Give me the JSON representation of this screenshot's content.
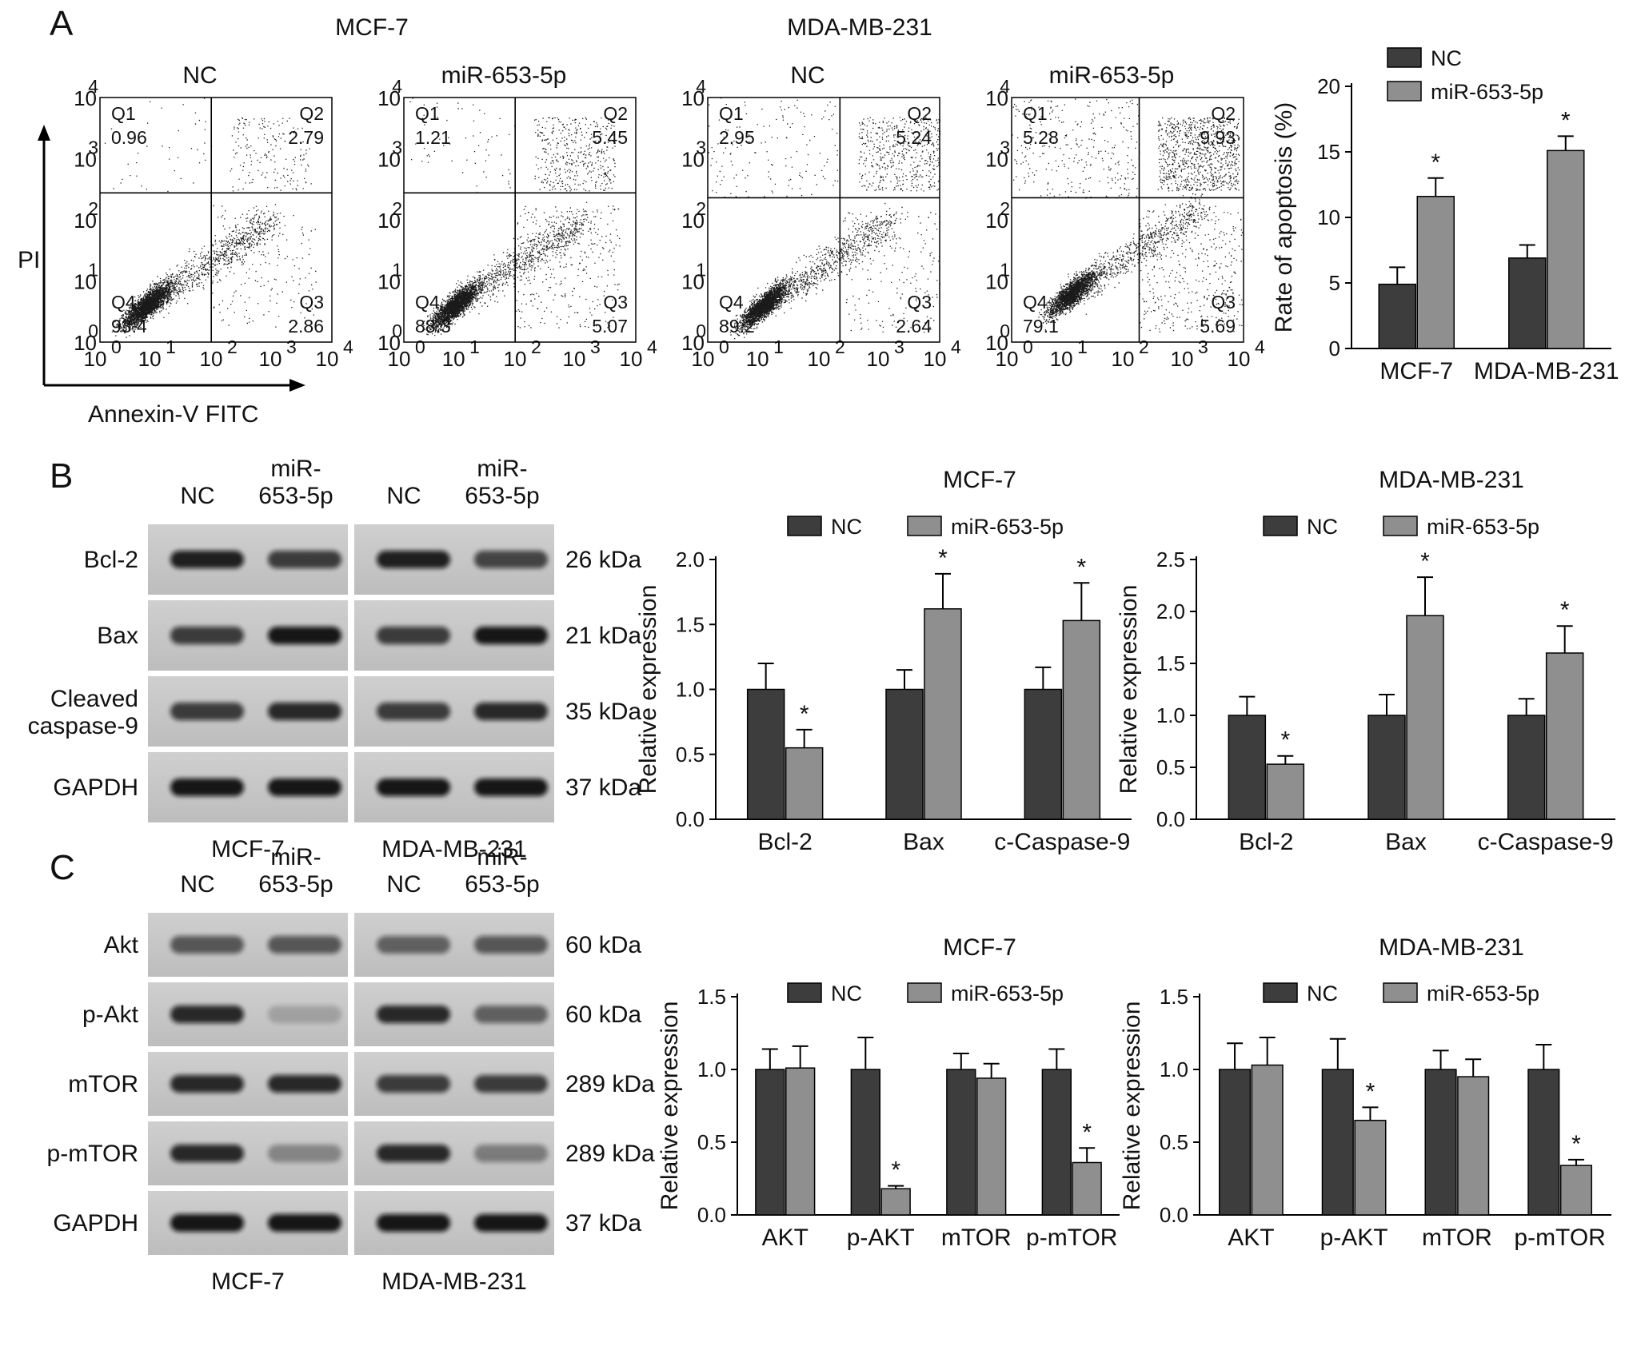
{
  "panel_labels": [
    "A",
    "B",
    "C"
  ],
  "flow": {
    "cell_titles": [
      "MCF-7",
      "MDA-MB-231"
    ],
    "xlabel": "Annexin-V FITC",
    "ylabel": "PI",
    "x_ticks": [
      "10",
      "10",
      "10",
      "10",
      "10"
    ],
    "x_exp": [
      "0",
      "1",
      "2",
      "3",
      "4"
    ],
    "y_ticks": [
      "10",
      "10",
      "10",
      "10",
      "10"
    ],
    "y_exp": [
      "0",
      "1",
      "2",
      "3",
      "4"
    ],
    "plots": [
      {
        "title": "NC",
        "Q1": "0.96",
        "Q2": "2.79",
        "Q3": "2.86",
        "Q4": "93.4"
      },
      {
        "title": "miR-653-5p",
        "Q1": "1.21",
        "Q2": "5.45",
        "Q3": "5.07",
        "Q4": "88.3"
      },
      {
        "title": "NC",
        "Q1": "2.95",
        "Q2": "5.24",
        "Q3": "2.64",
        "Q4": "89.2"
      },
      {
        "title": "miR-653-5p",
        "Q1": "5.28",
        "Q2": "9.93",
        "Q3": "5.69",
        "Q4": "79.1"
      }
    ],
    "quadrant_names": [
      "Q1",
      "Q2",
      "Q3",
      "Q4"
    ]
  },
  "blots": {
    "B": {
      "header_nc": "NC",
      "header_mir_1": "miR-",
      "header_mir_2": "653-5p",
      "rows": [
        {
          "label": "Bcl-2",
          "kda": "26 kDa"
        },
        {
          "label": "Bax",
          "kda": "21 kDa"
        },
        {
          "label": "Cleaved caspase-9",
          "label_1": "Cleaved",
          "label_2": "caspase-9",
          "kda": "35 kDa"
        },
        {
          "label": "GAPDH",
          "kda": "37 kDa"
        }
      ],
      "cell_lines": [
        "MCF-7",
        "MDA-MB-231"
      ]
    },
    "C": {
      "header_nc": "NC",
      "header_mir_1": "miR-",
      "header_mir_2": "653-5p",
      "rows": [
        {
          "label": "Akt",
          "kda": "60 kDa"
        },
        {
          "label": "p-Akt",
          "kda": "60 kDa"
        },
        {
          "label": "mTOR",
          "kda": "289 kDa"
        },
        {
          "label": "p-mTOR",
          "kda": "289 kDa"
        },
        {
          "label": "GAPDH",
          "kda": "37 kDa"
        }
      ],
      "cell_lines": [
        "MCF-7",
        "MDA-MB-231"
      ]
    }
  },
  "colors": {
    "nc": "#3d3d3d",
    "mir": "#8f8f8f"
  },
  "chart_data": [
    {
      "type": "bar",
      "title": "",
      "categories": [
        "MCF-7",
        "MDA-MB-231"
      ],
      "series": [
        {
          "name": "NC",
          "values": [
            4.9,
            6.9
          ],
          "errors": [
            1.3,
            1.0
          ]
        },
        {
          "name": "miR-653-5p",
          "values": [
            11.6,
            15.1
          ],
          "errors": [
            1.4,
            1.1
          ]
        }
      ],
      "significant": [
        [
          false,
          false
        ],
        [
          true,
          true
        ]
      ],
      "ylabel": "Rate of apoptosis (%)",
      "ylim": [
        0,
        20
      ],
      "yticks": [
        0,
        5,
        10,
        15,
        20
      ],
      "legend": "top-left",
      "grid": false
    },
    {
      "type": "bar",
      "title": "MCF-7",
      "categories": [
        "Bcl-2",
        "Bax",
        "c-Caspase-9"
      ],
      "series": [
        {
          "name": "NC",
          "values": [
            1.0,
            1.0,
            1.0
          ],
          "errors": [
            0.2,
            0.15,
            0.17
          ]
        },
        {
          "name": "miR-653-5p",
          "values": [
            0.55,
            1.62,
            1.53
          ],
          "errors": [
            0.14,
            0.27,
            0.29
          ]
        }
      ],
      "significant": [
        [
          false,
          false,
          false
        ],
        [
          true,
          true,
          true
        ]
      ],
      "ylabel": "Relative expression",
      "ylim": [
        0,
        2.0
      ],
      "yticks": [
        "0.0",
        "0.5",
        "1.0",
        "1.5",
        "2.0"
      ],
      "legend": "top",
      "grid": false
    },
    {
      "type": "bar",
      "title": "MDA-MB-231",
      "categories": [
        "Bcl-2",
        "Bax",
        "c-Caspase-9"
      ],
      "series": [
        {
          "name": "NC",
          "values": [
            1.0,
            1.0,
            1.0
          ],
          "errors": [
            0.18,
            0.2,
            0.16
          ]
        },
        {
          "name": "miR-653-5p",
          "values": [
            0.53,
            1.96,
            1.6
          ],
          "errors": [
            0.08,
            0.37,
            0.26
          ]
        }
      ],
      "significant": [
        [
          false,
          false,
          false
        ],
        [
          true,
          true,
          true
        ]
      ],
      "ylabel": "Relative expression",
      "ylim": [
        0,
        2.5
      ],
      "yticks": [
        "0.0",
        "0.5",
        "1.0",
        "1.5",
        "2.0",
        "2.5"
      ],
      "legend": "top",
      "grid": false
    },
    {
      "type": "bar",
      "title": "MCF-7",
      "categories": [
        "AKT",
        "p-AKT",
        "mTOR",
        "p-mTOR"
      ],
      "series": [
        {
          "name": "NC",
          "values": [
            1.0,
            1.0,
            1.0,
            1.0
          ],
          "errors": [
            0.14,
            0.22,
            0.11,
            0.14
          ]
        },
        {
          "name": "miR-653-5p",
          "values": [
            1.01,
            0.18,
            0.94,
            0.36
          ],
          "errors": [
            0.15,
            0.02,
            0.1,
            0.1
          ]
        }
      ],
      "significant": [
        [
          false,
          false,
          false,
          false
        ],
        [
          false,
          true,
          false,
          true
        ]
      ],
      "ylabel": "Relative expression",
      "ylim": [
        0,
        1.5
      ],
      "yticks": [
        "0.0",
        "0.5",
        "1.0",
        "1.5"
      ],
      "legend": "top",
      "grid": false
    },
    {
      "type": "bar",
      "title": "MDA-MB-231",
      "categories": [
        "AKT",
        "p-AKT",
        "mTOR",
        "p-mTOR"
      ],
      "series": [
        {
          "name": "NC",
          "values": [
            1.0,
            1.0,
            1.0,
            1.0
          ],
          "errors": [
            0.18,
            0.21,
            0.13,
            0.17
          ]
        },
        {
          "name": "miR-653-5p",
          "values": [
            1.03,
            0.65,
            0.95,
            0.34
          ],
          "errors": [
            0.19,
            0.09,
            0.12,
            0.04
          ]
        }
      ],
      "significant": [
        [
          false,
          false,
          false,
          false
        ],
        [
          false,
          true,
          false,
          true
        ]
      ],
      "ylabel": "Relative expression",
      "ylim": [
        0,
        1.5
      ],
      "yticks": [
        "0.0",
        "0.5",
        "1.0",
        "1.5"
      ],
      "legend": "top",
      "grid": false
    }
  ]
}
